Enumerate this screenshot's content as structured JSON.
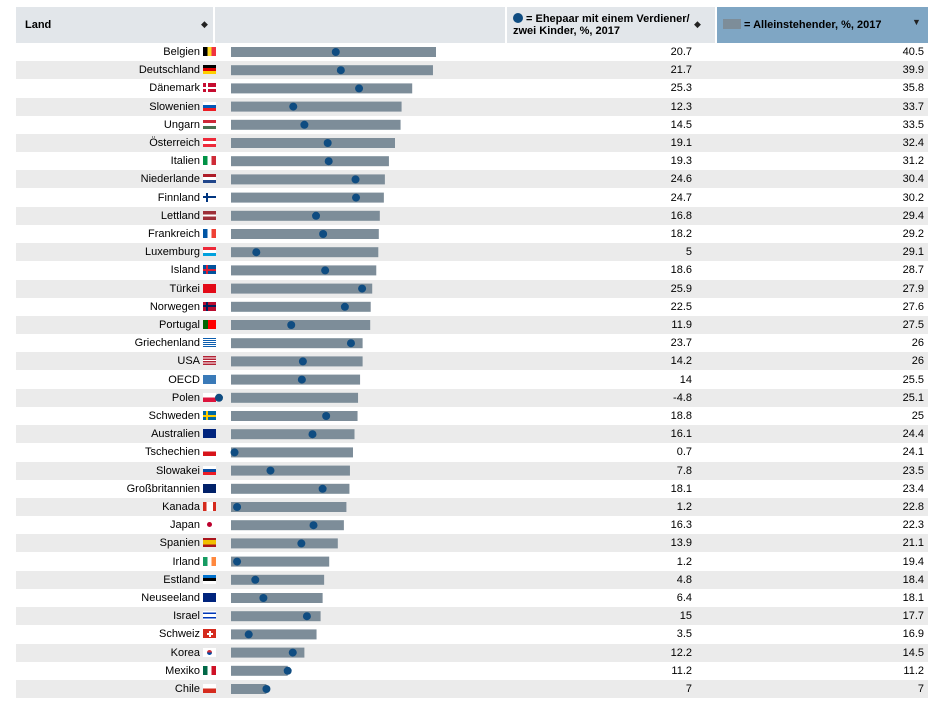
{
  "header": {
    "country_col": "Land",
    "married_col_line1": "= Ehepaar mit einem Verdiener/",
    "married_col_line2": "zwei Kinder, %, 2017",
    "single_col": "= Alleinstehender, %, 2017",
    "sort_icon": "sort-updown-icon",
    "sort_active_icon": "sort-down-icon"
  },
  "colors": {
    "bar": "#7d8d99",
    "dot": "#0f4c81",
    "header_bg": "#e2e6ea",
    "header_sorted_bg": "#7fa6c4",
    "row_alt": "#ebebeb"
  },
  "chart_data": {
    "type": "bar",
    "title": "",
    "xlabel": "",
    "ylabel": "",
    "xlim": [
      -5,
      42
    ],
    "series": [
      {
        "name": "= Ehepaar mit einem Verdiener/ zwei Kinder, %, 2017",
        "mark": "dot"
      },
      {
        "name": "= Alleinstehender, %, 2017",
        "mark": "bar"
      }
    ],
    "rows": [
      {
        "country": "Belgien",
        "flag": "be",
        "married": "20.7",
        "single": "40.5"
      },
      {
        "country": "Deutschland",
        "flag": "de",
        "married": "21.7",
        "single": "39.9"
      },
      {
        "country": "Dänemark",
        "flag": "dk",
        "married": "25.3",
        "single": "35.8"
      },
      {
        "country": "Slowenien",
        "flag": "si",
        "married": "12.3",
        "single": "33.7"
      },
      {
        "country": "Ungarn",
        "flag": "hu",
        "married": "14.5",
        "single": "33.5"
      },
      {
        "country": "Österreich",
        "flag": "at",
        "married": "19.1",
        "single": "32.4"
      },
      {
        "country": "Italien",
        "flag": "it",
        "married": "19.3",
        "single": "31.2"
      },
      {
        "country": "Niederlande",
        "flag": "nl",
        "married": "24.6",
        "single": "30.4"
      },
      {
        "country": "Finnland",
        "flag": "fi",
        "married": "24.7",
        "single": "30.2"
      },
      {
        "country": "Lettland",
        "flag": "lv",
        "married": "16.8",
        "single": "29.4"
      },
      {
        "country": "Frankreich",
        "flag": "fr",
        "married": "18.2",
        "single": "29.2"
      },
      {
        "country": "Luxemburg",
        "flag": "lu",
        "married": "5",
        "single": "29.1"
      },
      {
        "country": "Island",
        "flag": "is",
        "married": "18.6",
        "single": "28.7"
      },
      {
        "country": "Türkei",
        "flag": "tr",
        "married": "25.9",
        "single": "27.9"
      },
      {
        "country": "Norwegen",
        "flag": "no",
        "married": "22.5",
        "single": "27.6"
      },
      {
        "country": "Portugal",
        "flag": "pt",
        "married": "11.9",
        "single": "27.5"
      },
      {
        "country": "Griechenland",
        "flag": "gr",
        "married": "23.7",
        "single": "26"
      },
      {
        "country": "USA",
        "flag": "us",
        "married": "14.2",
        "single": "26"
      },
      {
        "country": "OECD",
        "flag": "oecd",
        "married": "14",
        "single": "25.5"
      },
      {
        "country": "Polen",
        "flag": "pl",
        "married": "-4.8",
        "single": "25.1"
      },
      {
        "country": "Schweden",
        "flag": "se",
        "married": "18.8",
        "single": "25"
      },
      {
        "country": "Australien",
        "flag": "au",
        "married": "16.1",
        "single": "24.4"
      },
      {
        "country": "Tschechien",
        "flag": "cz",
        "married": "0.7",
        "single": "24.1"
      },
      {
        "country": "Slowakei",
        "flag": "sk",
        "married": "7.8",
        "single": "23.5"
      },
      {
        "country": "Großbritannien",
        "flag": "gb",
        "married": "18.1",
        "single": "23.4"
      },
      {
        "country": "Kanada",
        "flag": "ca",
        "married": "1.2",
        "single": "22.8"
      },
      {
        "country": "Japan",
        "flag": "jp",
        "married": "16.3",
        "single": "22.3"
      },
      {
        "country": "Spanien",
        "flag": "es",
        "married": "13.9",
        "single": "21.1"
      },
      {
        "country": "Irland",
        "flag": "ie",
        "married": "1.2",
        "single": "19.4"
      },
      {
        "country": "Estland",
        "flag": "ee",
        "married": "4.8",
        "single": "18.4"
      },
      {
        "country": "Neuseeland",
        "flag": "nz",
        "married": "6.4",
        "single": "18.1"
      },
      {
        "country": "Israel",
        "flag": "il",
        "married": "15",
        "single": "17.7"
      },
      {
        "country": "Schweiz",
        "flag": "ch",
        "married": "3.5",
        "single": "16.9"
      },
      {
        "country": "Korea",
        "flag": "kr",
        "married": "12.2",
        "single": "14.5"
      },
      {
        "country": "Mexiko",
        "flag": "mx",
        "married": "11.2",
        "single": "11.2"
      },
      {
        "country": "Chile",
        "flag": "cl",
        "married": "7",
        "single": "7"
      }
    ]
  }
}
